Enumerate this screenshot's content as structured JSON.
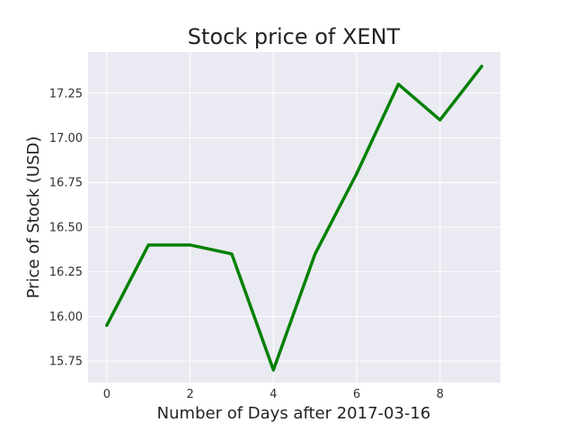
{
  "chart_data": {
    "type": "line",
    "title": "Stock price of XENT",
    "xlabel": "Number of Days after 2017-03-16",
    "ylabel": "Price of Stock (USD)",
    "x": [
      0,
      1,
      2,
      3,
      4,
      5,
      6,
      7,
      8,
      9
    ],
    "series": [
      {
        "values": [
          15.95,
          16.4,
          16.4,
          16.35,
          15.7,
          16.35,
          16.8,
          17.3,
          17.1,
          17.4
        ],
        "color": "#008000"
      }
    ],
    "xticks": [
      "0",
      "2",
      "4",
      "6",
      "8"
    ],
    "yticks": [
      "15.75",
      "16.00",
      "16.25",
      "16.50",
      "16.75",
      "17.00",
      "17.25"
    ],
    "xlim": [
      -0.45,
      9.45
    ],
    "ylim": [
      15.63,
      17.48
    ],
    "grid": true,
    "style": {
      "background": "#eaeaf2",
      "gridColor": "#ffffff"
    }
  }
}
